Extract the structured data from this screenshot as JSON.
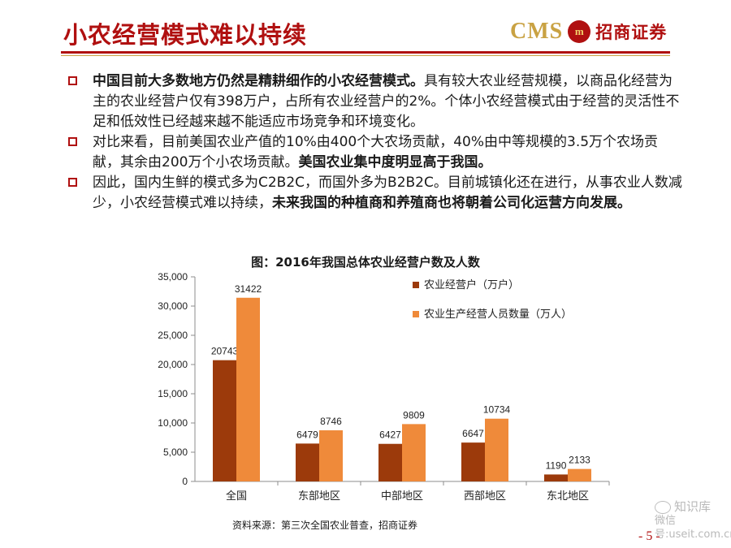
{
  "header": {
    "title": "小农经营模式难以持续",
    "logo": {
      "cms": "CMS",
      "mark": "m",
      "name": "招商证券"
    }
  },
  "bullets": [
    {
      "parts": [
        {
          "text": "中国目前大多数地方仍然是精耕细作的小农经营模式。",
          "bold": true
        },
        {
          "text": "具有较大农业经营规模，以商品化经营为主的农业经营户仅有398万户，占所有农业经营户的2%。个体小农经营模式由于经营的灵活性不足和低效性已经越来越不能适应市场竞争和环境变化。",
          "bold": false
        }
      ]
    },
    {
      "parts": [
        {
          "text": "对比来看，目前美国农业产值的10%由400个大农场贡献，40%由中等规模的3.5万个农场贡献，其余由200万个小农场贡献。",
          "bold": false
        },
        {
          "text": "美国农业集中度明显高于我国。",
          "bold": true
        }
      ]
    },
    {
      "parts": [
        {
          "text": "因此，国内生鲜的模式多为C2B2C，而国外多为B2B2C。目前城镇化还在进行，从事农业人数减少，小农经营模式难以持续，",
          "bold": false
        },
        {
          "text": "未来我国的种植商和养殖商也将朝着公司化运营方向发展。",
          "bold": true
        }
      ]
    }
  ],
  "chart_data": {
    "type": "bar",
    "title": "图：2016年我国总体农业经营户数及人数",
    "categories": [
      "全国",
      "东部地区",
      "中部地区",
      "西部地区",
      "东北地区"
    ],
    "series": [
      {
        "name": "农业经营户（万户）",
        "color": "#9c3a0b",
        "values": [
          20743,
          6479,
          6427,
          6647,
          1190
        ]
      },
      {
        "name": "农业生产经营人员数量（万人）",
        "color": "#ef8a3a",
        "values": [
          31422,
          8746,
          9809,
          10734,
          2133
        ]
      }
    ],
    "ylim": [
      0,
      35000
    ],
    "yticks": [
      "0",
      "5,000",
      "10,000",
      "15,000",
      "20,000",
      "25,000",
      "30,000",
      "35,000"
    ],
    "ytick_values": [
      0,
      5000,
      10000,
      15000,
      20000,
      25000,
      30000,
      35000
    ],
    "grid": false,
    "legend": "top-right"
  },
  "footer": {
    "source": "资料来源：第三次全国农业普查，招商证券",
    "page": "- 5 -",
    "watermark_top": "知识库",
    "watermark_bottom": "微信号:useit.com.cn"
  }
}
